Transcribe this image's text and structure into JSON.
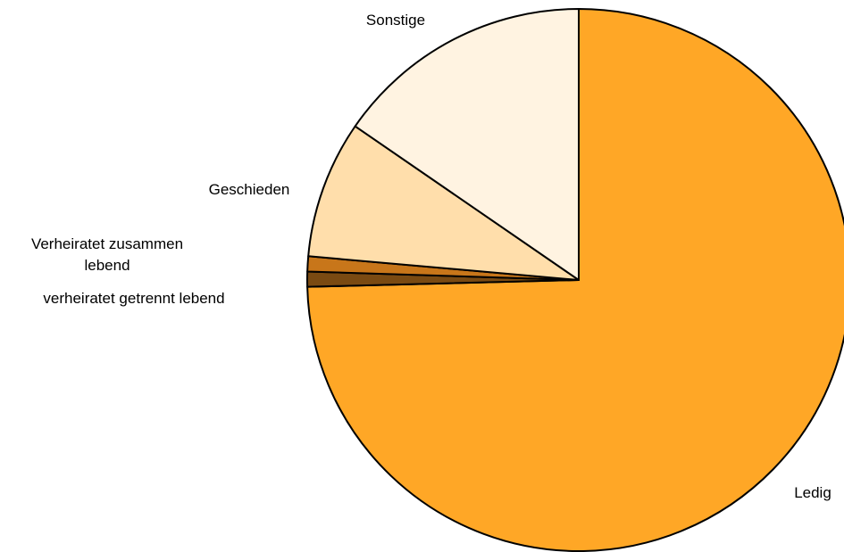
{
  "chart_data": {
    "type": "pie",
    "title": "",
    "slices": [
      {
        "label": "Ledig",
        "value": 74.6,
        "color": "#FFA726"
      },
      {
        "label": "verheiratet getrennt lebend",
        "value": 0.9,
        "color": "#7A4A12"
      },
      {
        "label": "Verheiratet zusammen lebend",
        "value": 0.9,
        "color": "#C8761A"
      },
      {
        "label": "Geschieden",
        "value": 8.2,
        "color": "#FFDEAB"
      },
      {
        "label": "Sonstige",
        "value": 15.4,
        "color": "#FFF3E1"
      }
    ],
    "start": "12 o'clock",
    "direction": "clockwise",
    "legend": "none",
    "labels": "outside"
  }
}
